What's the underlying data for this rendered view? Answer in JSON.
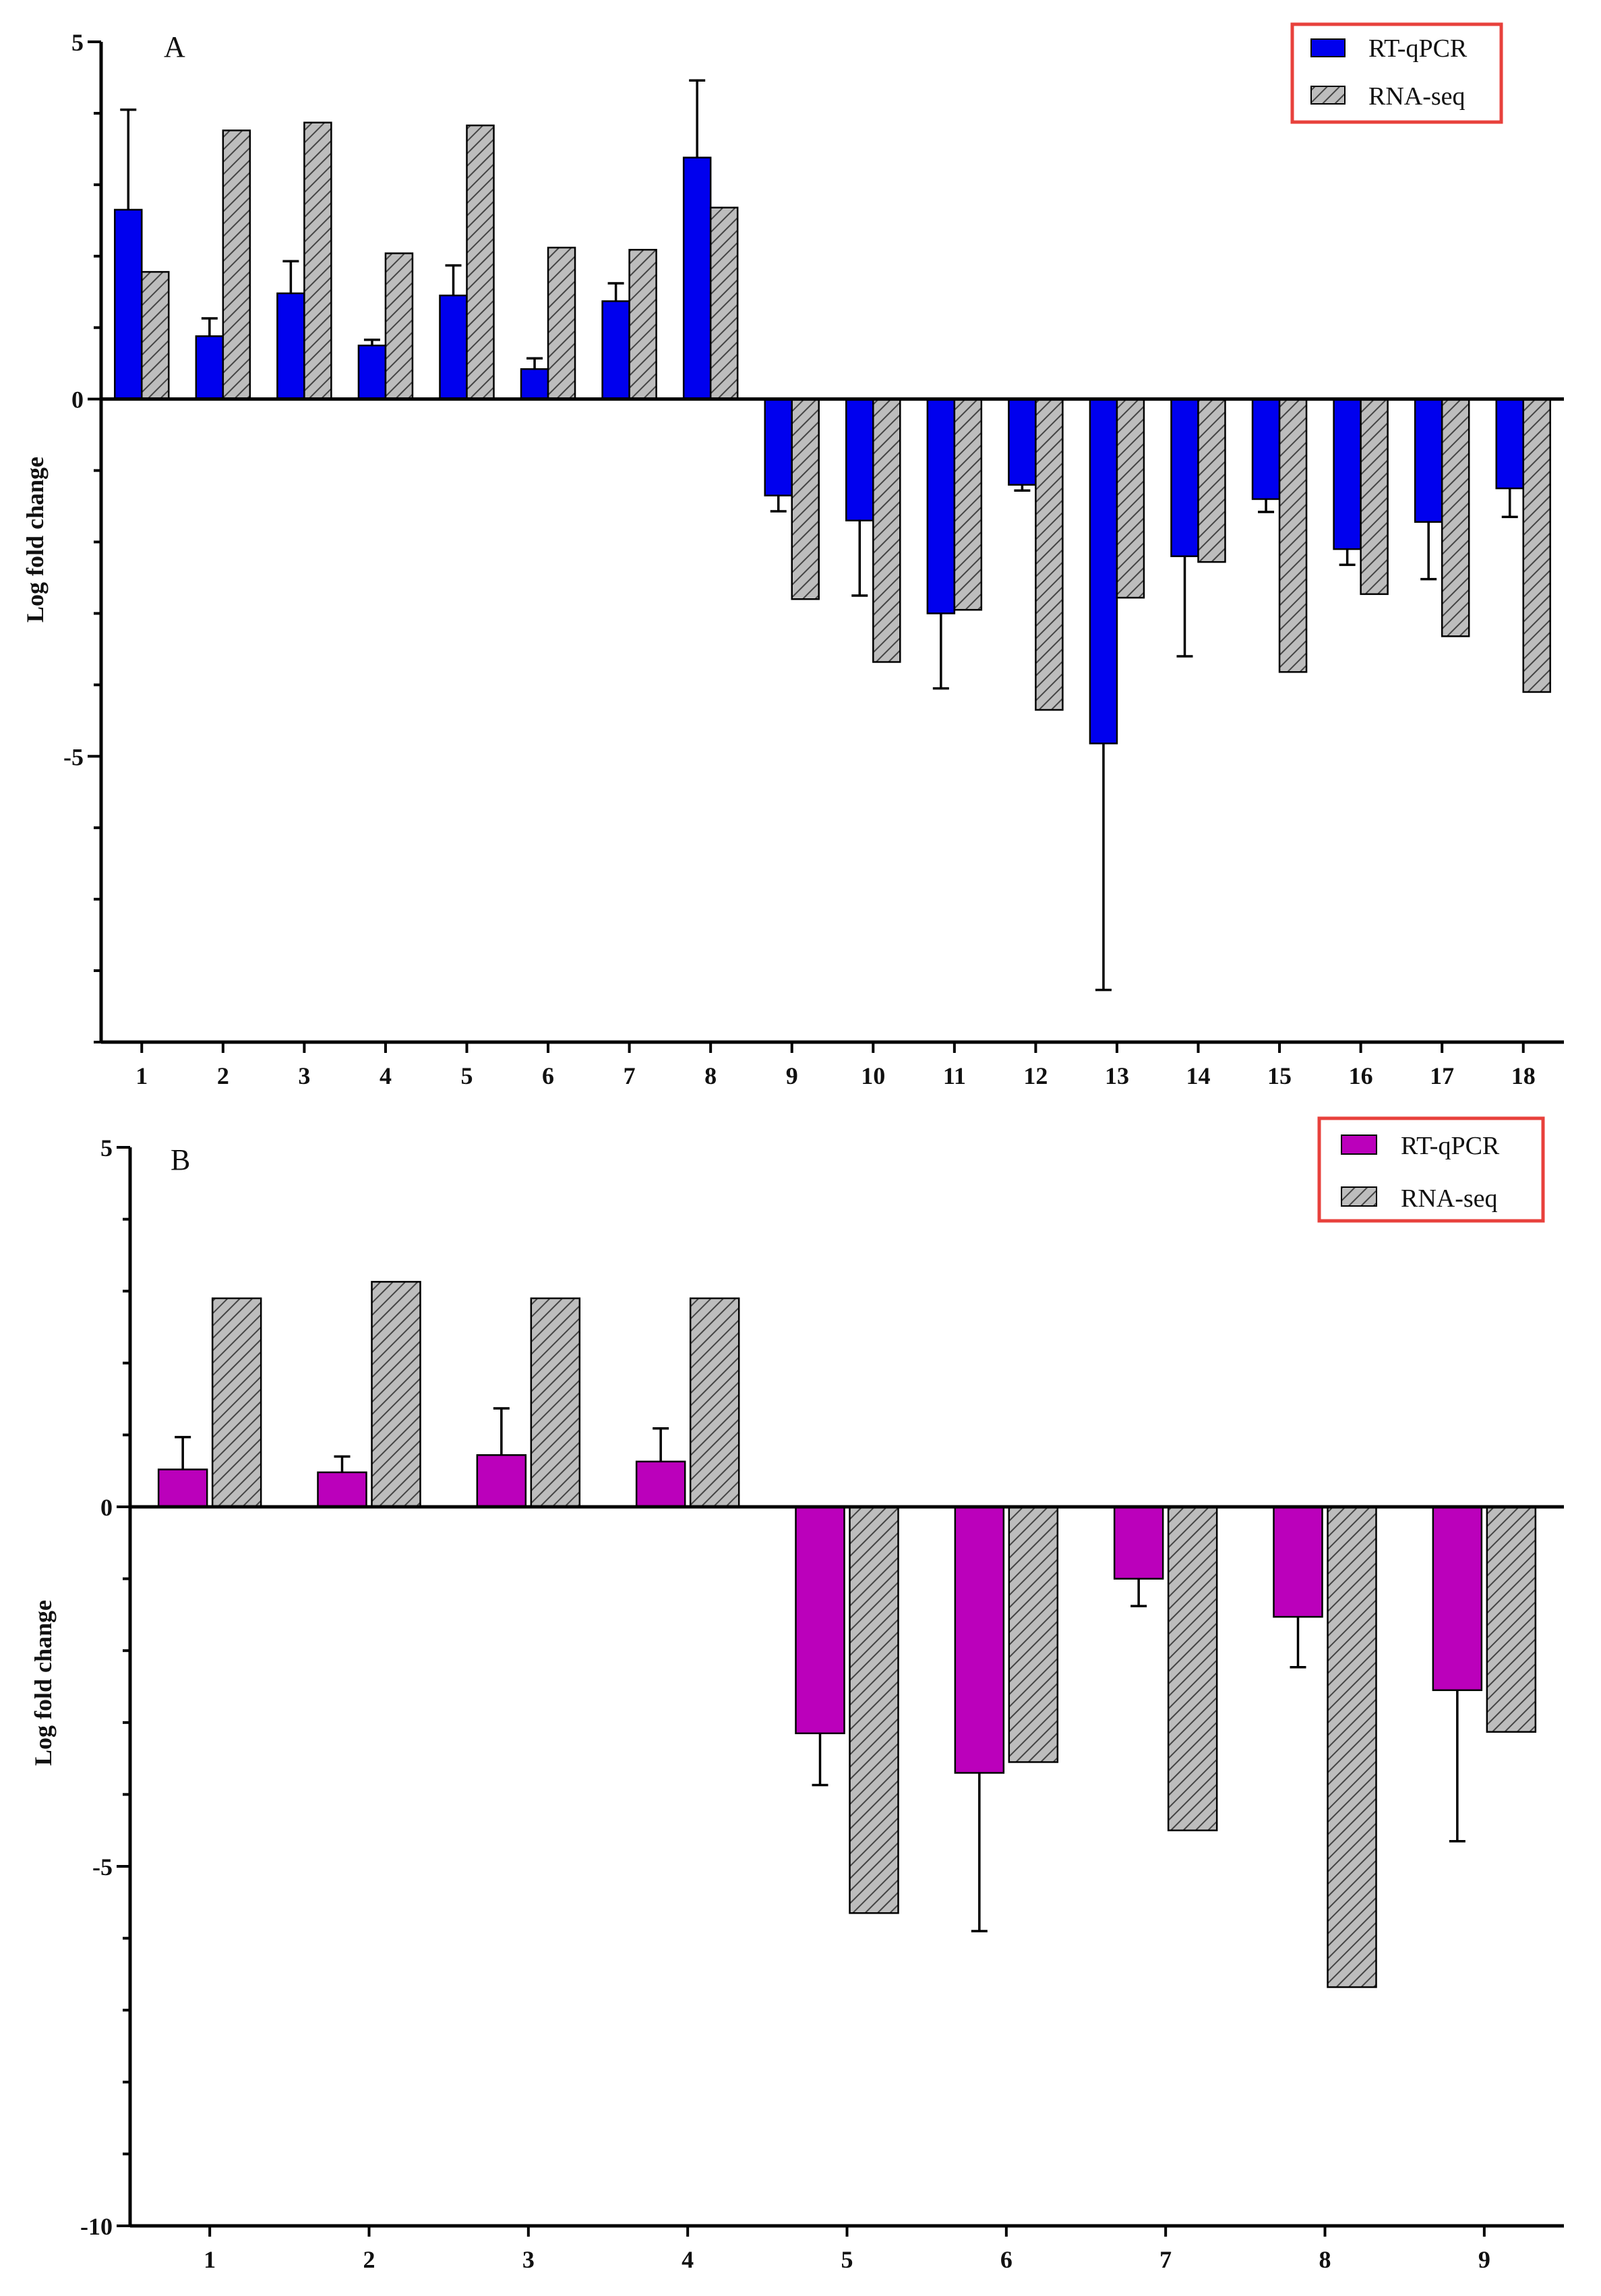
{
  "colors": {
    "panel_a_qpcr": "#0000ee",
    "panel_b_qpcr": "#bb00bb",
    "rnaseq_fill": "#bdbdbd",
    "hatch_line": "#444444",
    "legend_border": "#e8413c",
    "axis": "#000000"
  },
  "chart_data": [
    {
      "type": "bar",
      "panel_label": "A",
      "ylabel": "Log fold change",
      "xlabel": "",
      "ylim": [
        -9,
        5
      ],
      "yticks": [
        5,
        0,
        -5
      ],
      "legend_position": "top-right",
      "categories": [
        "1",
        "2",
        "3",
        "4",
        "5",
        "6",
        "7",
        "8",
        "9",
        "10",
        "11",
        "12",
        "13",
        "14",
        "15",
        "16",
        "17",
        "18"
      ],
      "series": [
        {
          "name": "RT-qPCR",
          "values": [
            2.65,
            0.88,
            1.48,
            0.75,
            1.45,
            0.42,
            1.37,
            3.38,
            -1.35,
            -1.7,
            -3.0,
            -1.2,
            -4.82,
            -2.2,
            -1.4,
            -2.1,
            -1.72,
            -1.25
          ],
          "errors": [
            1.4,
            0.25,
            0.45,
            0.08,
            0.42,
            0.15,
            0.25,
            1.08,
            0.22,
            1.05,
            1.05,
            0.08,
            3.45,
            1.4,
            0.18,
            0.22,
            0.8,
            0.4
          ]
        },
        {
          "name": "RNA-seq",
          "values": [
            1.78,
            3.76,
            3.87,
            2.04,
            3.83,
            2.12,
            2.09,
            2.68,
            -2.8,
            -3.68,
            -2.95,
            -4.35,
            -2.78,
            -2.28,
            -3.82,
            -2.73,
            -3.32,
            -4.1
          ]
        }
      ]
    },
    {
      "type": "bar",
      "panel_label": "B",
      "ylabel": "Log fold change",
      "xlabel": "",
      "ylim": [
        -10,
        5
      ],
      "yticks": [
        5,
        0,
        -5,
        -10
      ],
      "legend_position": "top-right",
      "categories": [
        "1",
        "2",
        "3",
        "4",
        "5",
        "6",
        "7",
        "8",
        "9"
      ],
      "series": [
        {
          "name": "RT-qPCR",
          "values": [
            0.52,
            0.48,
            0.72,
            0.63,
            -3.15,
            -3.7,
            -1.0,
            -1.53,
            -2.55
          ],
          "errors": [
            0.45,
            0.22,
            0.65,
            0.46,
            0.72,
            2.2,
            0.38,
            0.7,
            2.1
          ]
        },
        {
          "name": "RNA-seq",
          "values": [
            2.9,
            3.13,
            2.9,
            2.9,
            -5.65,
            -3.55,
            -4.5,
            -6.68,
            -3.13
          ]
        }
      ]
    }
  ]
}
